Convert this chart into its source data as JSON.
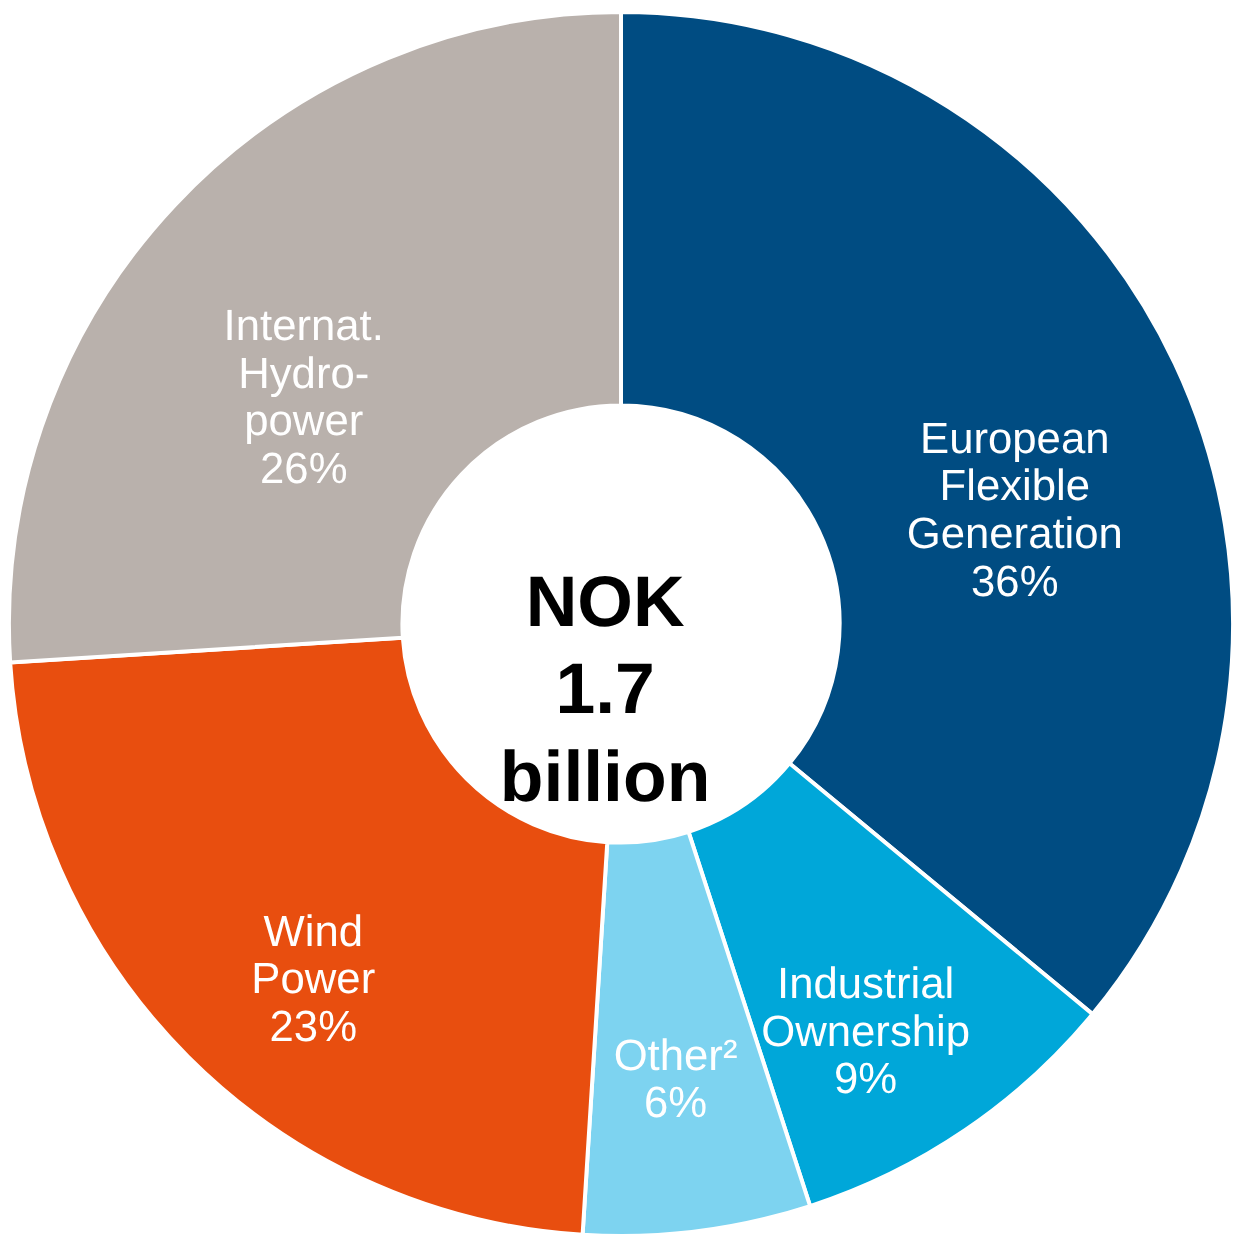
{
  "chart_data": {
    "type": "donut",
    "title": "NOK\n1.7\nbillion",
    "categories": [
      "European\nFlexible\nGeneration",
      "Industrial\nOwnership",
      "Other²",
      "Wind\nPower",
      "Internat.\nHydro-\npower"
    ],
    "values": [
      36,
      9,
      6,
      23,
      26
    ],
    "value_labels": [
      "36%",
      "9%",
      "6%",
      "23%",
      "26%"
    ],
    "colors": [
      "#004c82",
      "#00a7d9",
      "#7dd3f0",
      "#e84e0f",
      "#b9b1ac"
    ],
    "legend": false
  }
}
